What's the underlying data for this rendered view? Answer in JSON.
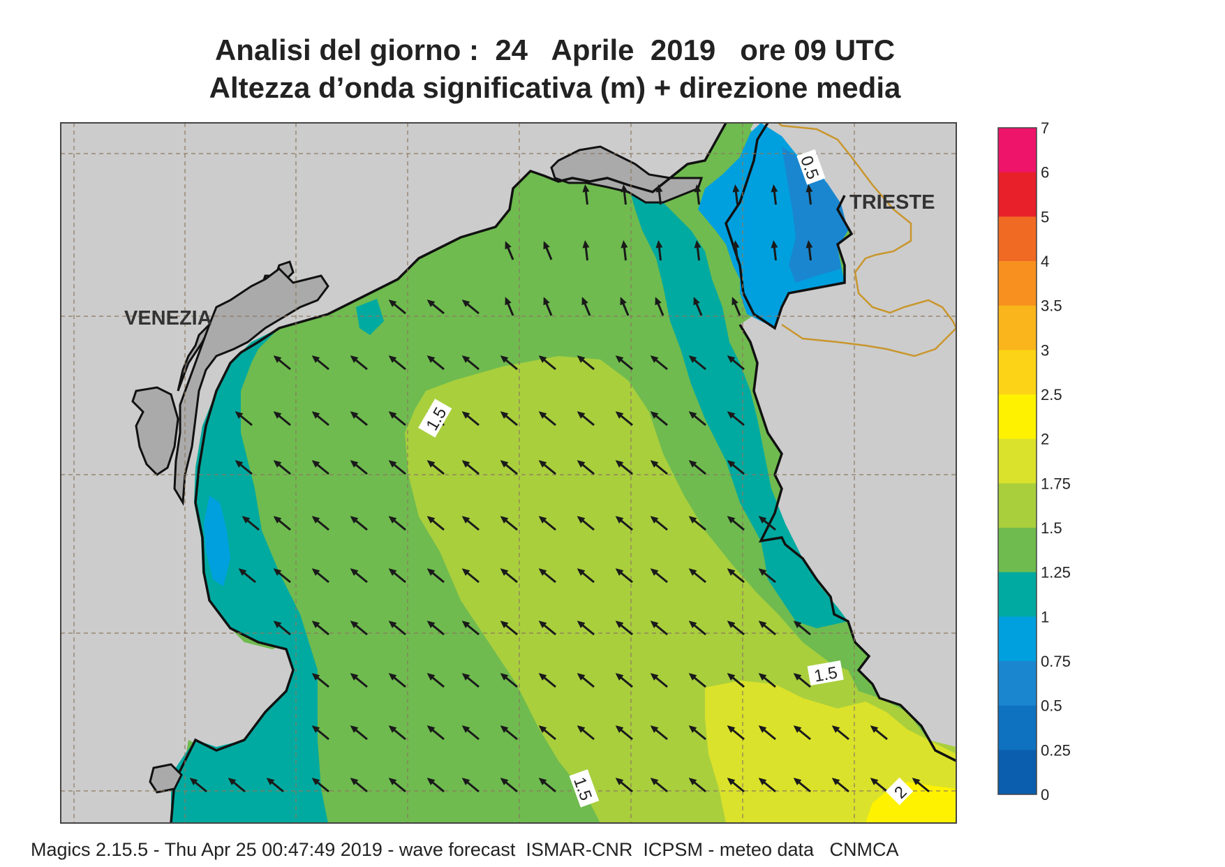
{
  "header": {
    "title_line1": "Analisi del giorno :  24   Aprile  2019   ore 09 UTC",
    "title_line2": "Altezza d’onda significativa (m) + direzione media"
  },
  "places": {
    "venezia": "VENEZIA",
    "trieste": "TRIESTE"
  },
  "contour_labels": [
    "1.5",
    "1.5",
    "1.5",
    "1.5",
    "2",
    "0.5"
  ],
  "colorbar": {
    "levels": [
      "7",
      "6",
      "5",
      "4",
      "3.5",
      "3",
      "2.5",
      "2",
      "1.75",
      "1.5",
      "1.25",
      "1",
      "0.75",
      "0.5",
      "0.25",
      "0"
    ],
    "colors_top_to_bottom": [
      "#ee1469",
      "#e8202a",
      "#f06a24",
      "#f7901e",
      "#f9b51b",
      "#fcd316",
      "#fff200",
      "#dbe22b",
      "#a9cf3d",
      "#6fbb4f",
      "#00aaa0",
      "#00a0df",
      "#1a86cf",
      "#0f72c0",
      "#0a5ead"
    ]
  },
  "footer": {
    "text": "Magics 2.15.5 - Thu Apr 25 00:47:49 2019 - wave forecast  ISMAR-CNR  ICPSM - meteo data   CNMCA"
  },
  "colors": {
    "land": "#cccccc",
    "land_dark": "#aaaaaa",
    "border": "#c9962c",
    "arrow": "#1a1a1a"
  },
  "arrows": {
    "direction": "toward north-west",
    "grid_note": "mean wave direction arrows"
  }
}
